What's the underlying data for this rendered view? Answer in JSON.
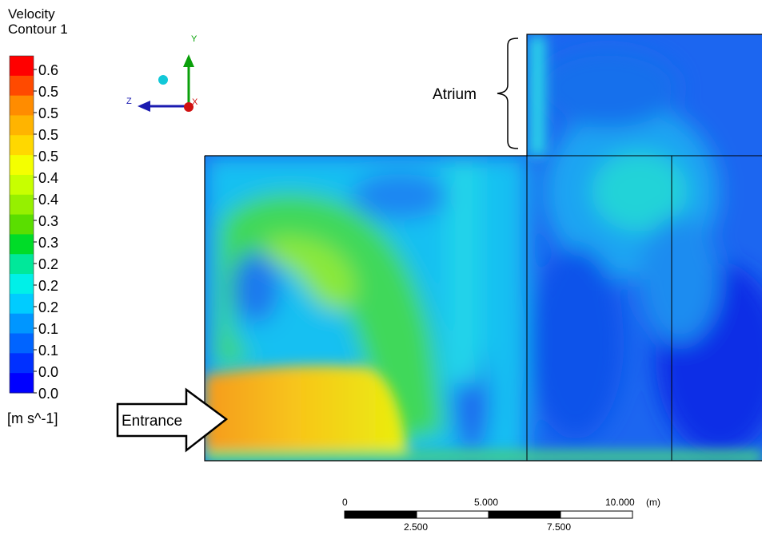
{
  "legend": {
    "title_line1": "Velocity",
    "title_line2": "Contour 1",
    "units": "[m s^-1]",
    "tick_labels": [
      "0.6",
      "0.5",
      "0.5",
      "0.5",
      "0.5",
      "0.4",
      "0.4",
      "0.3",
      "0.3",
      "0.2",
      "0.2",
      "0.2",
      "0.1",
      "0.1",
      "0.0",
      "0.0"
    ],
    "colors": [
      "#ff0000",
      "#ff4a00",
      "#ff8c00",
      "#ffb400",
      "#ffd800",
      "#f4ff00",
      "#c8ff00",
      "#96f000",
      "#5ade00",
      "#00dc28",
      "#00e89a",
      "#00f0e8",
      "#00ccff",
      "#0096ff",
      "#0064ff",
      "#0030ff",
      "#0000ff"
    ]
  },
  "axes": {
    "y": "Y",
    "z": "Z",
    "x": "X"
  },
  "annotations": {
    "atrium": "Atrium",
    "entrance": "Entrance"
  },
  "scale_bar": {
    "top_labels": [
      "0",
      "5.000",
      "10.000"
    ],
    "bottom_labels": [
      "2.500",
      "7.500"
    ],
    "unit": "(m)"
  }
}
